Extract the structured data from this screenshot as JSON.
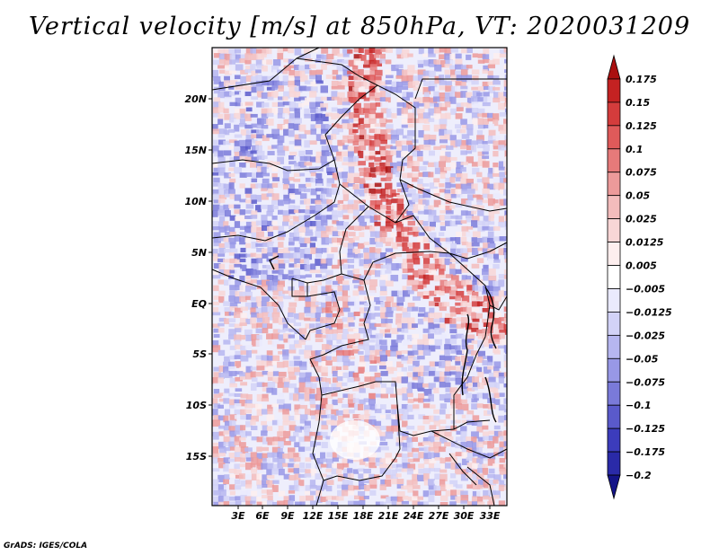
{
  "title": "Vertical velocity [m/s] at 850hPa, VT: 2020031209",
  "credit": "GrADS: IGES/COLA",
  "map": {
    "lon_labels": [
      "3E",
      "6E",
      "9E",
      "12E",
      "15E",
      "18E",
      "21E",
      "24E",
      "27E",
      "30E",
      "33E"
    ],
    "lat_labels": [
      "20N",
      "15N",
      "10N",
      "5N",
      "EQ",
      "5S",
      "10S",
      "15S"
    ]
  },
  "colorbar": {
    "levels": [
      "0.175",
      "0.15",
      "0.125",
      "0.1",
      "0.075",
      "0.05",
      "0.025",
      "0.0125",
      "0.005",
      "-0.005",
      "-0.0125",
      "-0.025",
      "-0.05",
      "-0.075",
      "-0.1",
      "-0.125",
      "-0.175",
      "-0.2"
    ],
    "colors": [
      "#aa1010",
      "#c42222",
      "#d43c3c",
      "#df5a5a",
      "#e67a7a",
      "#ec9a9a",
      "#f3bcbc",
      "#f8d6d6",
      "#fdeeee",
      "#ffffff",
      "#eaeafd",
      "#d2d2f7",
      "#b6b6f0",
      "#9898e6",
      "#7a7ad9",
      "#5a5acb",
      "#3c3cbc",
      "#2a2aa8",
      "#141488"
    ]
  }
}
